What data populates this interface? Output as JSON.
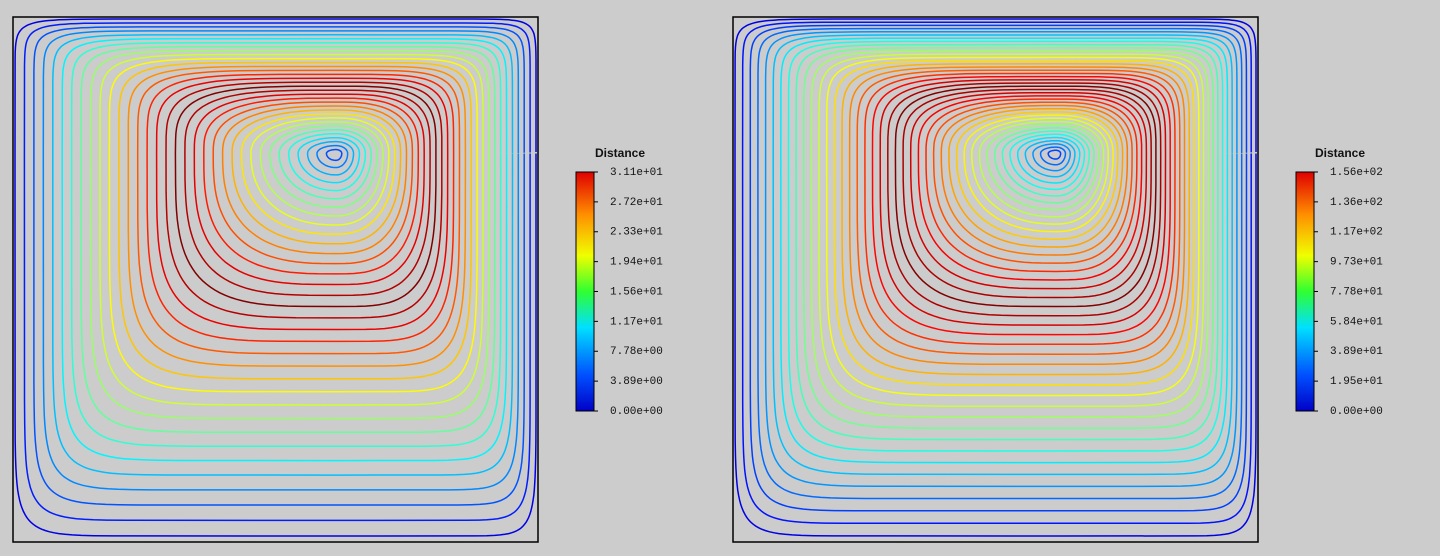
{
  "panels": [
    {
      "colorbar": {
        "title": "Distance",
        "labels": [
          "3.11e+01",
          "2.72e+01",
          "2.33e+01",
          "1.94e+01",
          "1.56e+01",
          "1.17e+01",
          "7.78e+00",
          "3.89e+00",
          "0.00e+00"
        ]
      }
    },
    {
      "colorbar": {
        "title": "Distance",
        "labels": [
          "1.56e+02",
          "1.36e+02",
          "1.17e+02",
          "9.73e+01",
          "7.78e+01",
          "5.84e+01",
          "3.89e+01",
          "1.95e+01",
          "0.00e+00"
        ]
      }
    }
  ]
}
